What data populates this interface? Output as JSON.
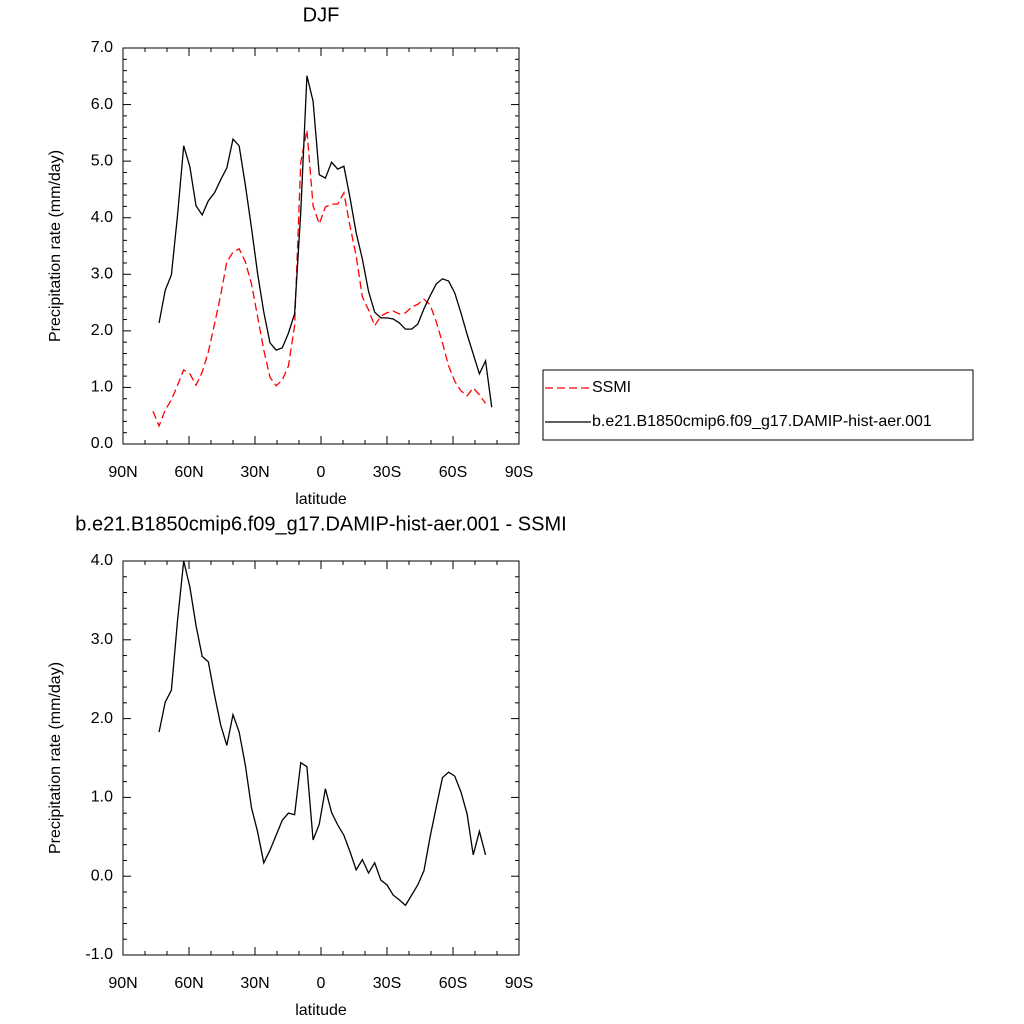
{
  "chart_data": [
    {
      "type": "line",
      "title": "DJF",
      "x_label": "latitude",
      "y_label": "Precipitation rate (mm/day)",
      "xlim": [
        90,
        -90
      ],
      "xticks": [
        {
          "value": 90,
          "label": "90N"
        },
        {
          "value": 60,
          "label": "60N"
        },
        {
          "value": 30,
          "label": "30N"
        },
        0,
        {
          "value": -30,
          "label": "30S"
        },
        {
          "value": -60,
          "label": "60S"
        },
        {
          "value": -90,
          "label": "90S"
        }
      ],
      "ylim": [
        0,
        7
      ],
      "yticks": [
        {
          "value": 0,
          "label": "0.0"
        },
        {
          "value": 1,
          "label": "1.0"
        },
        {
          "value": 2,
          "label": "2.0"
        },
        {
          "value": 3,
          "label": "3.0"
        },
        {
          "value": 4,
          "label": "4.0"
        },
        {
          "value": 5,
          "label": "5.0"
        },
        {
          "value": 6,
          "label": "6.0"
        },
        {
          "value": 7,
          "label": "7.0"
        }
      ],
      "legend": "right",
      "series": [
        {
          "name": "SSMI",
          "color": "#ff0000",
          "line_style": "dashed",
          "x": [
            76.4,
            73.6,
            70.8,
            68.0,
            65.2,
            62.4,
            59.6,
            56.8,
            54.0,
            51.2,
            48.4,
            45.6,
            42.8,
            40.0,
            37.2,
            34.4,
            31.6,
            28.8,
            26.0,
            23.2,
            20.4,
            17.6,
            14.8,
            12.0,
            9.2,
            6.4,
            3.6,
            0.8,
            -2.0,
            -4.8,
            -7.6,
            -10.4,
            -13.2,
            -16.0,
            -18.8,
            -21.6,
            -24.4,
            -27.2,
            -30.0,
            -32.8,
            -35.6,
            -38.4,
            -41.2,
            -44.0,
            -46.8,
            -49.6,
            -52.4,
            -55.2,
            -58.0,
            -60.8,
            -63.6,
            -66.4,
            -69.2,
            -72.0,
            -74.8
          ],
          "values": [
            0.58,
            0.32,
            0.6,
            0.78,
            1.04,
            1.31,
            1.24,
            1.04,
            1.27,
            1.63,
            2.12,
            2.63,
            3.22,
            3.39,
            3.45,
            3.22,
            2.83,
            2.25,
            1.66,
            1.18,
            1.03,
            1.13,
            1.38,
            2.09,
            4.98,
            5.55,
            4.21,
            3.89,
            4.19,
            4.24,
            4.24,
            4.44,
            3.85,
            3.32,
            2.6,
            2.37,
            2.09,
            2.26,
            2.32,
            2.35,
            2.3,
            2.32,
            2.42,
            2.47,
            2.56,
            2.46,
            2.16,
            1.79,
            1.38,
            1.11,
            0.94,
            0.85,
            0.99,
            0.87,
            0.72
          ]
        },
        {
          "name": "b.e21.B1850cmip6.f09_g17.DAMIP-hist-aer.001",
          "color": "#000000",
          "line_style": "solid",
          "x": [
            73.6,
            70.8,
            68.0,
            65.2,
            62.4,
            59.6,
            56.8,
            54.0,
            51.2,
            48.4,
            45.6,
            42.8,
            40.0,
            37.2,
            34.4,
            31.6,
            28.8,
            26.0,
            23.2,
            20.4,
            17.6,
            14.8,
            12.0,
            9.2,
            6.4,
            3.6,
            0.8,
            -2.0,
            -4.8,
            -7.6,
            -10.4,
            -13.2,
            -16.0,
            -18.8,
            -21.6,
            -24.4,
            -27.2,
            -30.0,
            -32.8,
            -35.6,
            -38.4,
            -41.2,
            -44.0,
            -46.8,
            -49.6,
            -52.4,
            -55.2,
            -58.0,
            -60.8,
            -63.6,
            -66.4,
            -69.2,
            -72.0,
            -74.8,
            -77.6
          ],
          "values": [
            2.14,
            2.72,
            2.99,
            4.05,
            5.27,
            4.9,
            4.21,
            4.05,
            4.3,
            4.44,
            4.67,
            4.88,
            5.39,
            5.27,
            4.58,
            3.82,
            3.01,
            2.33,
            1.79,
            1.66,
            1.7,
            1.96,
            2.3,
            4.1,
            6.51,
            6.06,
            4.76,
            4.7,
            4.98,
            4.86,
            4.91,
            4.35,
            3.73,
            3.27,
            2.7,
            2.33,
            2.23,
            2.23,
            2.21,
            2.14,
            2.03,
            2.03,
            2.12,
            2.39,
            2.62,
            2.83,
            2.92,
            2.88,
            2.67,
            2.32,
            1.94,
            1.59,
            1.24,
            1.47,
            0.65
          ]
        }
      ]
    },
    {
      "type": "line",
      "title": "b.e21.B1850cmip6.f09_g17.DAMIP-hist-aer.001 - SSMI",
      "x_label": "latitude",
      "y_label": "Precipitation rate (mm/day)",
      "xlim": [
        90,
        -90
      ],
      "xticks": [
        {
          "value": 90,
          "label": "90N"
        },
        {
          "value": 60,
          "label": "60N"
        },
        {
          "value": 30,
          "label": "30N"
        },
        0,
        {
          "value": -30,
          "label": "30S"
        },
        {
          "value": -60,
          "label": "60S"
        },
        {
          "value": -90,
          "label": "90S"
        }
      ],
      "ylim": [
        -1,
        4
      ],
      "yticks": [
        {
          "value": -1,
          "label": "-1.0"
        },
        {
          "value": 0,
          "label": "0.0"
        },
        {
          "value": 1,
          "label": "1.0"
        },
        {
          "value": 2,
          "label": "2.0"
        },
        {
          "value": 3,
          "label": "3.0"
        },
        {
          "value": 4,
          "label": "4.0"
        }
      ],
      "series": [
        {
          "color": "#000000",
          "line_style": "solid",
          "x": [
            73.6,
            70.8,
            68.0,
            65.2,
            62.4,
            59.6,
            56.8,
            54.0,
            51.2,
            48.4,
            45.6,
            42.8,
            40.0,
            37.2,
            34.4,
            31.6,
            28.8,
            26.0,
            23.2,
            20.4,
            17.6,
            14.8,
            12.0,
            9.2,
            6.4,
            3.6,
            0.8,
            -2.0,
            -4.8,
            -7.6,
            -10.4,
            -13.2,
            -16.0,
            -18.8,
            -21.6,
            -24.4,
            -27.2,
            -30.0,
            -32.8,
            -35.6,
            -38.4,
            -41.2,
            -44.0,
            -46.8,
            -49.6,
            -52.4,
            -55.2,
            -58.0,
            -60.8,
            -63.6,
            -66.4,
            -69.2,
            -72.0,
            -74.8
          ],
          "values": [
            1.83,
            2.21,
            2.36,
            3.25,
            4.0,
            3.67,
            3.18,
            2.79,
            2.72,
            2.3,
            1.92,
            1.66,
            2.05,
            1.83,
            1.41,
            0.87,
            0.56,
            0.17,
            0.33,
            0.52,
            0.71,
            0.8,
            0.78,
            1.44,
            1.39,
            0.46,
            0.66,
            1.11,
            0.81,
            0.65,
            0.52,
            0.31,
            0.08,
            0.21,
            0.04,
            0.17,
            -0.05,
            -0.11,
            -0.24,
            -0.3,
            -0.37,
            -0.24,
            -0.11,
            0.07,
            0.5,
            0.88,
            1.25,
            1.32,
            1.27,
            1.07,
            0.79,
            0.27,
            0.57,
            0.27
          ]
        }
      ]
    }
  ]
}
